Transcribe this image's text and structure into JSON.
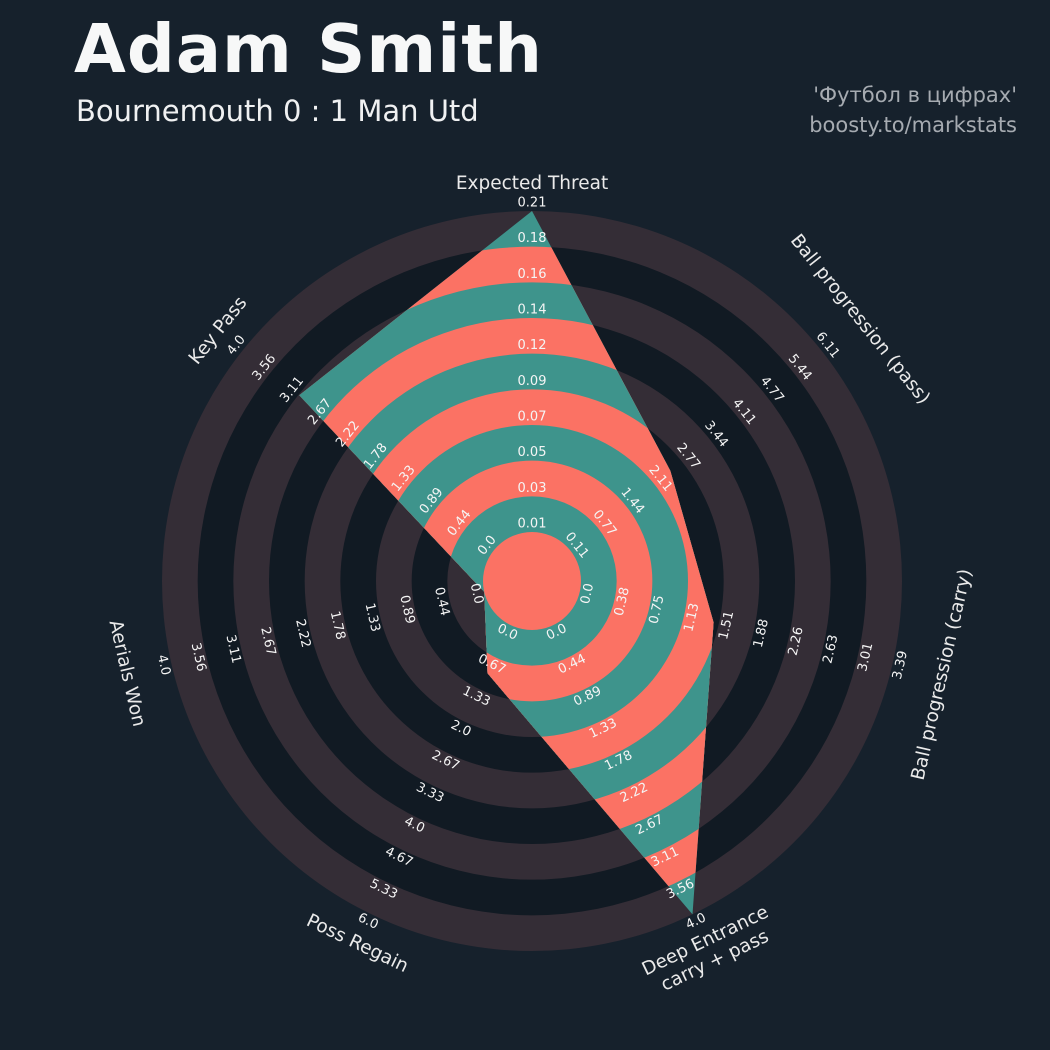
{
  "header": {
    "title": "Adam Smith",
    "subtitle": "Bournemouth 0 : 1 Man Utd"
  },
  "credits": {
    "line1": "'Футбол в цифрах'",
    "line2": "boosty.to/markstats"
  },
  "colors": {
    "background": "#16212c",
    "ring_navy": "#111a23",
    "ring_mauve": "#342d36",
    "fill_teal": "#3e948c",
    "fill_salmon": "#fb7264",
    "tick_text": "#f5f5f5",
    "axis_label_text": "#eaeaea",
    "title_text": "#f7f8f8",
    "credits_text": "#a6abb1"
  },
  "chart_data": {
    "type": "radar",
    "title": "Adam Smith — Bournemouth 0 : 1 Man Utd",
    "grid": "concentric-rings",
    "legend_position": "none",
    "axes": [
      {
        "label": "Expected Threat",
        "ticks": [
          "0.01",
          "0.03",
          "0.05",
          "0.07",
          "0.09",
          "0.12",
          "0.14",
          "0.16",
          "0.18",
          "0.21"
        ],
        "min": 0.01,
        "max": 0.21,
        "value": 0.21
      },
      {
        "label": "Ball progression (pass)",
        "ticks": [
          "0.11",
          "0.77",
          "1.44",
          "2.11",
          "2.77",
          "3.44",
          "4.11",
          "4.77",
          "5.44",
          "6.11"
        ],
        "min": 0.11,
        "max": 6.11,
        "value": 2.5
      },
      {
        "label": "Ball progression (carry)",
        "ticks": [
          "0.0",
          "0.38",
          "0.75",
          "1.13",
          "1.51",
          "1.88",
          "2.26",
          "2.63",
          "3.01",
          "3.39"
        ],
        "min": 0.0,
        "max": 3.39,
        "value": 1.45
      },
      {
        "label": "Deep Entrance carry + pass",
        "label_lines": [
          "Deep Entrance",
          "carry + pass"
        ],
        "ticks": [
          "0.0",
          "0.44",
          "0.89",
          "1.33",
          "1.78",
          "2.22",
          "2.67",
          "3.11",
          "3.56",
          "4.0"
        ],
        "min": 0.0,
        "max": 4.0,
        "value": 4.0
      },
      {
        "label": "Poss Regain",
        "ticks": [
          "0.0",
          "0.67",
          "1.33",
          "2.0",
          "2.67",
          "3.33",
          "4.0",
          "4.67",
          "5.33",
          "6.0"
        ],
        "min": 0.0,
        "max": 6.0,
        "value": 1.0
      },
      {
        "label": "Aerials Won",
        "ticks": [
          "0.0",
          "0.44",
          "0.89",
          "1.33",
          "1.78",
          "2.22",
          "2.67",
          "3.11",
          "3.56",
          "4.0"
        ],
        "min": 0.0,
        "max": 4.0,
        "value": 0.0
      },
      {
        "label": "Key Pass",
        "ticks": [
          "0.0",
          "0.44",
          "0.89",
          "1.33",
          "1.78",
          "2.22",
          "2.67",
          "3.11",
          "3.56",
          "4.0"
        ],
        "min": 0.0,
        "max": 4.0,
        "value": 3.1
      }
    ]
  }
}
